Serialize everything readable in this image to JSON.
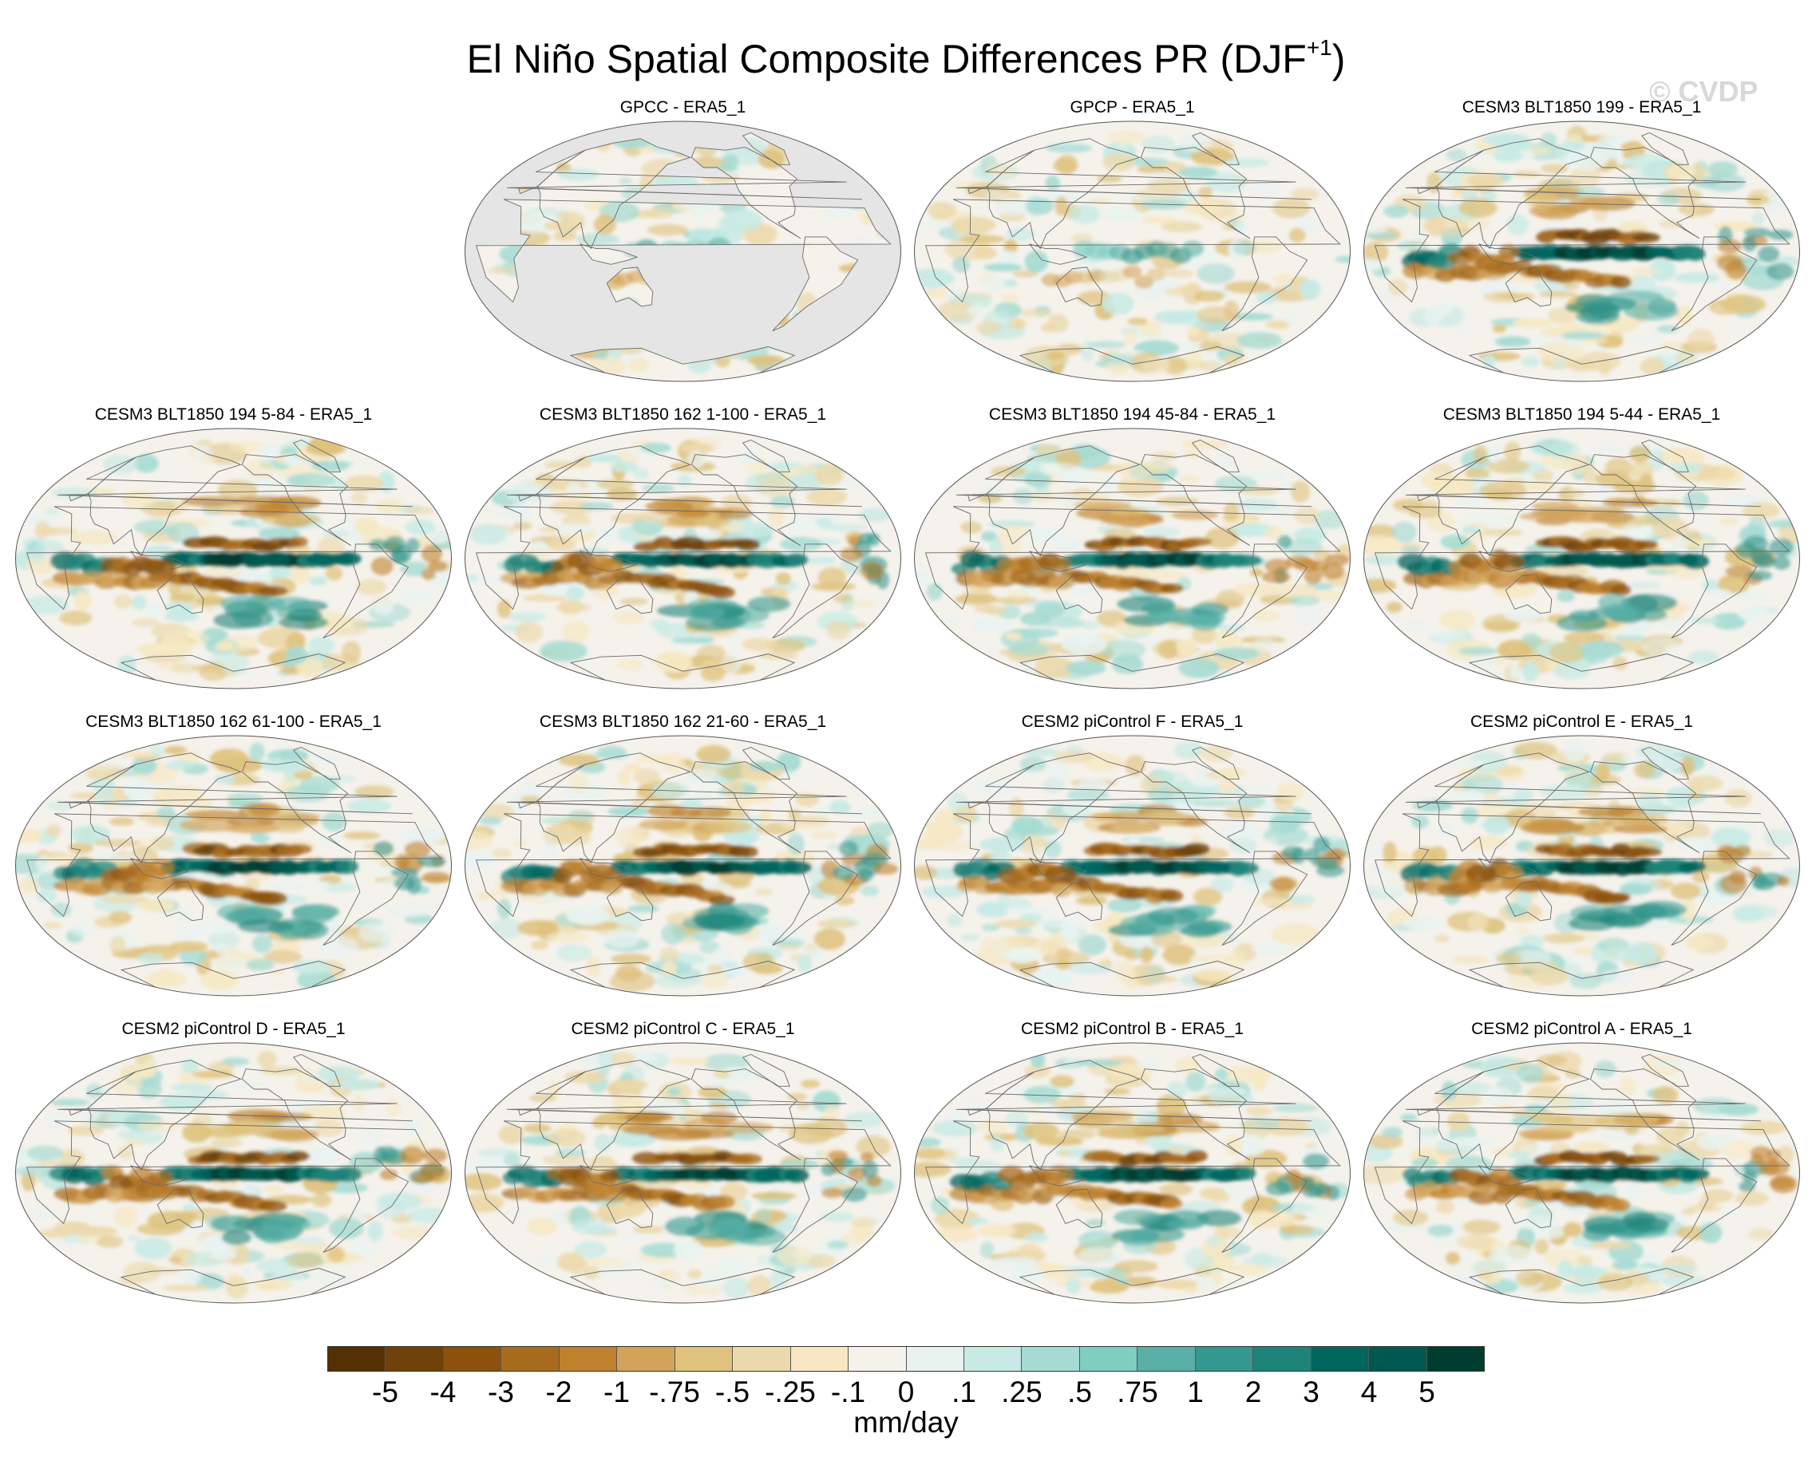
{
  "title": {
    "main": "El Niño Spatial Composite Differences PR (DJF",
    "superscript": "+1",
    "close": ")"
  },
  "watermark": "© CVDP",
  "panels": [
    {
      "title": "GPCC - ERA5_1",
      "type": "land-only",
      "pattern": "obs"
    },
    {
      "title": "GPCP - ERA5_1",
      "type": "full",
      "pattern": "obs"
    },
    {
      "title": "CESM3 BLT1850 199 - ERA5_1",
      "type": "full",
      "pattern": "model"
    },
    {
      "title": "CESM3 BLT1850 194 5-84 - ERA5_1",
      "type": "full",
      "pattern": "model"
    },
    {
      "title": "CESM3 BLT1850 162 1-100 - ERA5_1",
      "type": "full",
      "pattern": "model"
    },
    {
      "title": "CESM3 BLT1850 194 45-84 - ERA5_1",
      "type": "full",
      "pattern": "model"
    },
    {
      "title": "CESM3 BLT1850 194 5-44 - ERA5_1",
      "type": "full",
      "pattern": "model"
    },
    {
      "title": "CESM3 BLT1850 162 61-100 - ERA5_1",
      "type": "full",
      "pattern": "model"
    },
    {
      "title": "CESM3 BLT1850 162 21-60 - ERA5_1",
      "type": "full",
      "pattern": "model"
    },
    {
      "title": "CESM2 piControl F - ERA5_1",
      "type": "full",
      "pattern": "model"
    },
    {
      "title": "CESM2 piControl E - ERA5_1",
      "type": "full",
      "pattern": "model"
    },
    {
      "title": "CESM2 piControl D - ERA5_1",
      "type": "full",
      "pattern": "model"
    },
    {
      "title": "CESM2 piControl C - ERA5_1",
      "type": "full",
      "pattern": "model"
    },
    {
      "title": "CESM2 piControl B - ERA5_1",
      "type": "full",
      "pattern": "model"
    },
    {
      "title": "CESM2 piControl A - ERA5_1",
      "type": "full",
      "pattern": "model"
    }
  ],
  "colorbar": {
    "colors": [
      "#543005",
      "#6e4108",
      "#8c510a",
      "#a76b1f",
      "#bf812d",
      "#d3a35a",
      "#dfc27d",
      "#ecd9ab",
      "#f6e8c3",
      "#f5f2ec",
      "#e8f3f1",
      "#c7eae5",
      "#a5dbd3",
      "#80cdc1",
      "#58b0a6",
      "#35978f",
      "#1e8479",
      "#01665e",
      "#00584f",
      "#003c30"
    ],
    "labels": [
      "-5",
      "-4",
      "-3",
      "-2",
      "-1",
      "-.75",
      "-.5",
      "-.25",
      "-.1",
      "0",
      ".1",
      ".25",
      ".5",
      ".75",
      "1",
      "2",
      "3",
      "4",
      "5"
    ],
    "units": "mm/day"
  },
  "land_mask_color": "#e5e5e5",
  "ocean_background": "#f5f2ec"
}
